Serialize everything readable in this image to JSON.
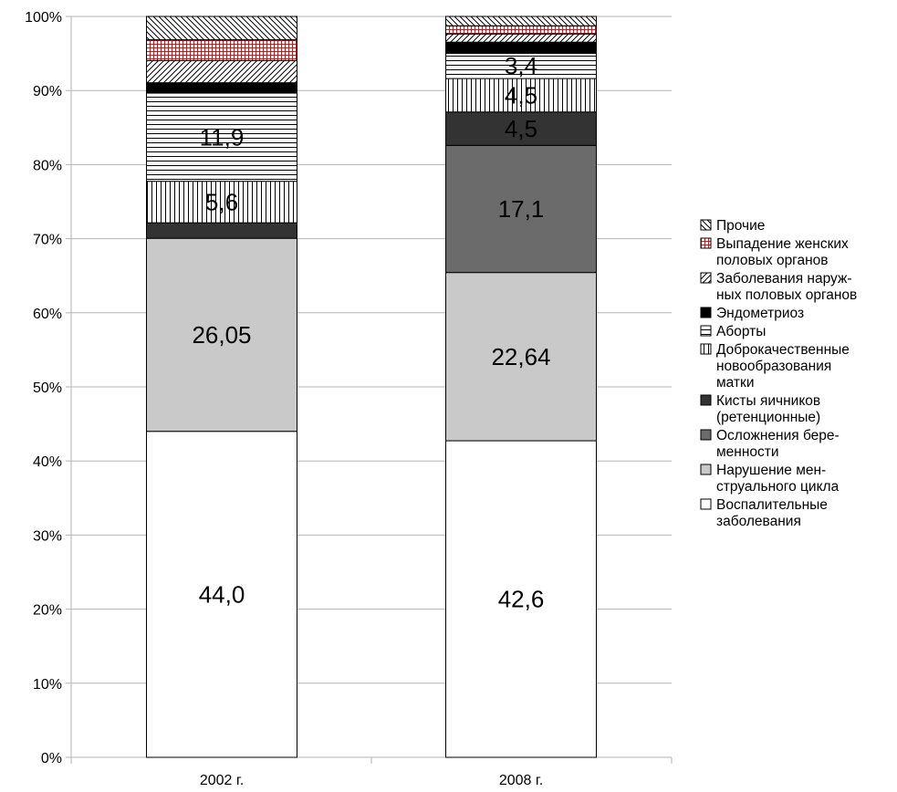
{
  "chart_data": {
    "type": "bar",
    "stacked": true,
    "percent_scale": true,
    "categories": [
      "2002 г.",
      "2008 г."
    ],
    "y_ticks": [
      "0%",
      "10%",
      "20%",
      "30%",
      "40%",
      "50%",
      "60%",
      "70%",
      "80%",
      "90%",
      "100%"
    ],
    "ylim": [
      0,
      100
    ],
    "grid": true,
    "legend_position": "right",
    "series": [
      {
        "name": [
          "Воспалительные",
          "заболевания"
        ],
        "values": [
          44.0,
          42.6
        ],
        "labels": [
          "44,0",
          "42,6"
        ],
        "fill": "#ffffff",
        "pattern": "solid"
      },
      {
        "name": [
          "Нарушение мен-",
          "струального цикла"
        ],
        "values": [
          26.05,
          22.64
        ],
        "labels": [
          "26,05",
          "22,64"
        ],
        "fill": "#c9c9c9",
        "pattern": "solid"
      },
      {
        "name": [
          "Осложнения бере-",
          "менности"
        ],
        "values": [
          0,
          17.1
        ],
        "labels": [
          "",
          "17,1"
        ],
        "fill": "#6b6b6b",
        "pattern": "solid"
      },
      {
        "name": [
          "Кисты яичников",
          "(ретенционные)"
        ],
        "values": [
          2.1,
          4.5
        ],
        "labels": [
          "",
          "4,5"
        ],
        "fill": "#333333",
        "pattern": "solid"
      },
      {
        "name": [
          "Доброкачественные",
          "новообразования",
          "матки"
        ],
        "values": [
          5.6,
          4.5
        ],
        "labels": [
          "5,6",
          "4,5"
        ],
        "fill": "#ffffff",
        "pattern": "vertical"
      },
      {
        "name": [
          "Аборты"
        ],
        "values": [
          11.9,
          3.4
        ],
        "labels": [
          "11,9",
          "3,4"
        ],
        "fill": "#ffffff",
        "pattern": "horizontal"
      },
      {
        "name": [
          "Эндометриоз"
        ],
        "values": [
          1.4,
          1.5
        ],
        "labels": [
          "",
          ""
        ],
        "fill": "#000000",
        "pattern": "solid"
      },
      {
        "name": [
          "Заболевания наруж-",
          "ных половых органов"
        ],
        "values": [
          3.0,
          1.1
        ],
        "labels": [
          "",
          ""
        ],
        "fill": "#ffffff",
        "pattern": "diag-up"
      },
      {
        "name": [
          "Выпадение женских",
          "половых органов"
        ],
        "values": [
          2.8,
          1.1
        ],
        "labels": [
          "",
          ""
        ],
        "fill": "#ffffff",
        "pattern": "grid-red"
      },
      {
        "name": [
          "Прочие"
        ],
        "values": [
          3.15,
          1.26
        ],
        "labels": [
          "",
          ""
        ],
        "fill": "#ffffff",
        "pattern": "diag-down"
      }
    ]
  }
}
